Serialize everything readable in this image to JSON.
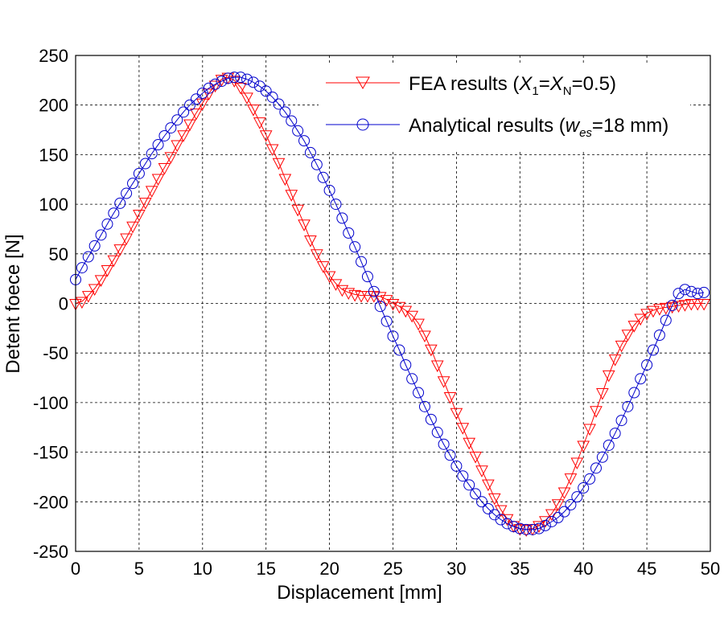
{
  "chart_data": {
    "type": "line",
    "title": "",
    "xlabel": "Displacement [mm]",
    "ylabel": "Detent foece [N]",
    "xlim": [
      0,
      50
    ],
    "ylim": [
      -250,
      250
    ],
    "xticks": [
      0,
      5,
      10,
      15,
      20,
      25,
      30,
      35,
      40,
      45,
      50
    ],
    "yticks": [
      250,
      200,
      150,
      100,
      50,
      0,
      -50,
      -100,
      -150,
      -200,
      -250
    ],
    "grid": true,
    "legend_position": "top-right",
    "series": [
      {
        "name": "FEA results",
        "legend_prefix": "FEA results (",
        "legend_var1": "X",
        "legend_sub1": "1",
        "legend_eq": "=",
        "legend_var2": "X",
        "legend_sub2": "N",
        "legend_suffix": "=0.5)",
        "color": "#ff0000",
        "marker": "triangle-down",
        "x": [
          0,
          0.5,
          1,
          1.5,
          2,
          2.5,
          3,
          3.5,
          4,
          4.5,
          5,
          5.5,
          6,
          6.5,
          7,
          7.5,
          8,
          8.5,
          9,
          9.5,
          10,
          10.5,
          11,
          11.5,
          12,
          12.5,
          13,
          13.5,
          14,
          14.5,
          15,
          15.5,
          16,
          16.5,
          17,
          17.5,
          18,
          18.5,
          19,
          19.5,
          20,
          20.5,
          21,
          21.5,
          22,
          22.5,
          23,
          23.5,
          24,
          24.5,
          25,
          25.5,
          26,
          26.5,
          27,
          27.5,
          28,
          28.5,
          29,
          29.5,
          30,
          30.5,
          31,
          31.5,
          32,
          32.5,
          33,
          33.5,
          34,
          34.5,
          35,
          35.5,
          36,
          36.5,
          37,
          37.5,
          38,
          38.5,
          39,
          39.5,
          40,
          40.5,
          41,
          41.5,
          42,
          42.5,
          43,
          43.5,
          44,
          44.5,
          45,
          45.5,
          46,
          46.5,
          47,
          47.5,
          48,
          48.5,
          49,
          49.5
        ],
        "values": [
          0,
          2,
          8,
          15,
          24,
          34,
          44,
          55,
          66,
          78,
          90,
          102,
          114,
          126,
          137,
          148,
          160,
          170,
          181,
          192,
          202,
          212,
          220,
          226,
          228,
          225,
          218,
          208,
          196,
          183,
          170,
          156,
          142,
          126,
          110,
          95,
          80,
          64,
          50,
          38,
          28,
          20,
          14,
          11,
          9,
          8,
          8,
          8,
          7,
          4,
          0,
          -3,
          -7,
          -12,
          -20,
          -32,
          -46,
          -62,
          -78,
          -94,
          -110,
          -125,
          -140,
          -154,
          -168,
          -182,
          -196,
          -208,
          -217,
          -224,
          -227,
          -228,
          -227,
          -224,
          -219,
          -212,
          -202,
          -190,
          -176,
          -160,
          -143,
          -126,
          -108,
          -90,
          -72,
          -56,
          -42,
          -31,
          -22,
          -15,
          -10,
          -7,
          -5,
          -4,
          -3,
          -2,
          -1,
          0,
          0,
          0
        ]
      },
      {
        "name": "Analytical results",
        "legend_prefix": "Analytical results (",
        "legend_var1": "w",
        "legend_sub1": "es",
        "legend_suffix": "=18 mm)",
        "color": "#0000cc",
        "marker": "circle",
        "x": [
          0,
          0.5,
          1,
          1.5,
          2,
          2.5,
          3,
          3.5,
          4,
          4.5,
          5,
          5.5,
          6,
          6.5,
          7,
          7.5,
          8,
          8.5,
          9,
          9.5,
          10,
          10.5,
          11,
          11.5,
          12,
          12.5,
          13,
          13.5,
          14,
          14.5,
          15,
          15.5,
          16,
          16.5,
          17,
          17.5,
          18,
          18.5,
          19,
          19.5,
          20,
          20.5,
          21,
          21.5,
          22,
          22.5,
          23,
          23.5,
          24,
          24.5,
          25,
          25.5,
          26,
          26.5,
          27,
          27.5,
          28,
          28.5,
          29,
          29.5,
          30,
          30.5,
          31,
          31.5,
          32,
          32.5,
          33,
          33.5,
          34,
          34.5,
          35,
          35.5,
          36,
          36.5,
          37,
          37.5,
          38,
          38.5,
          39,
          39.5,
          40,
          40.5,
          41,
          41.5,
          42,
          42.5,
          43,
          43.5,
          44,
          44.5,
          45,
          45.5,
          46,
          46.5,
          47,
          47.5,
          48,
          48.5,
          49,
          49.5
        ],
        "values": [
          24,
          36,
          47,
          58,
          69,
          80,
          91,
          101,
          111,
          121,
          131,
          141,
          151,
          160,
          169,
          177,
          185,
          193,
          200,
          206,
          212,
          217,
          221,
          224,
          227,
          228,
          228,
          226,
          223,
          219,
          214,
          208,
          201,
          193,
          184,
          174,
          164,
          152,
          140,
          127,
          114,
          100,
          86,
          71,
          57,
          42,
          27,
          12,
          -3,
          -18,
          -33,
          -47,
          -62,
          -76,
          -90,
          -104,
          -117,
          -130,
          -142,
          -153,
          -164,
          -174,
          -183,
          -192,
          -200,
          -207,
          -213,
          -218,
          -222,
          -225,
          -227,
          -228,
          -228,
          -227,
          -224,
          -220,
          -216,
          -210,
          -203,
          -195,
          -186,
          -177,
          -166,
          -155,
          -143,
          -131,
          -118,
          -104,
          -90,
          -76,
          -62,
          -47,
          -32,
          -17,
          -2,
          10,
          14,
          12,
          10,
          11
        ]
      }
    ]
  }
}
